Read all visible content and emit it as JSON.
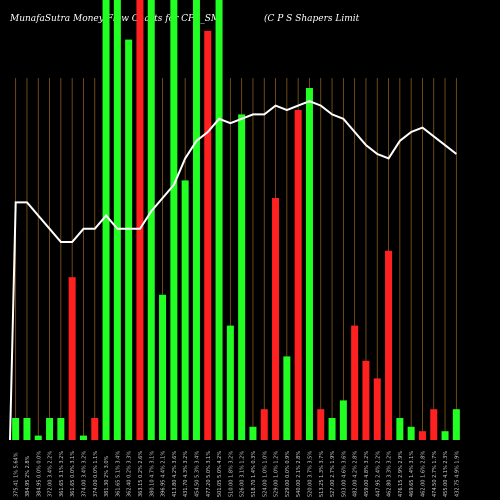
{
  "header": {
    "left": "MunafaSutra  Money Flow  Charts for CPS_SM",
    "right": "(C P S Shapers Limit"
  },
  "colors": {
    "background": "#000000",
    "up": "#22ff22",
    "down": "#ff2020",
    "grid": "#8a5a1a",
    "line": "#ffffff"
  },
  "chart_data": {
    "type": "bar",
    "ylim": [
      0,
      100
    ],
    "price_ylim": [
      0,
      100
    ],
    "categories": [
      "375.41 1% 5.64%",
      "384.95 2% 2.8%",
      "384.95 0.0% 0.0%",
      "372.00 3.4% 2.2%",
      "361.65 3.1% 3.2%",
      "361.65 0.0% 3.1%",
      "374.00 3.4% 3.2%",
      "374.00 0.0% 1.1%",
      "381.30 2% 3.0%",
      "361.65 5.1% 3.4%",
      "362.40 0.2% 3.3%",
      "363.15 0.2% 2.6%",
      "380.10 4.7% 3.1%",
      "396.95 4.4% 2.1%",
      "413.80 4.2% 3.6%",
      "431.70 4.3% 3.2%",
      "454.50 5.3% 3.4%",
      "477.20 5.0% 3.1%",
      "501.05 5.0% 4.2%",
      "510.00 1.8% 3.2%",
      "526.00 3.1% 1.2%",
      "518.70 1.4% 0.3%",
      "524.00 1.0% 1.0%",
      "529.00 1.0% 1.2%",
      "529.00 0.0% 0.9%",
      "540.00 2.1% 2.8%",
      "520.00 3.7% 3.5%",
      "513.25 1.3% 3.7%",
      "527.00 2.7% 1.9%",
      "503.00 4.6% 3.6%",
      "482.00 4.2% 2.8%",
      "459.00 4.8% 3.2%",
      "447.95 2.4% 2.2%",
      "462.80 3.3% 3.2%",
      "476.15 2.9% 2.9%",
      "469.65 1.4% 3.1%",
      "462.00 1.6% 2.8%",
      "474.50 2.7% 1.7%",
      "455.00 4.1% 2.3%",
      "432.75 4.9% 1.9%"
    ],
    "series": [
      {
        "direction": [
          "up",
          "up",
          "up",
          "up",
          "up",
          "down",
          "up",
          "down",
          "up",
          "up",
          "up",
          "down",
          "up",
          "up",
          "up",
          "up",
          "up",
          "down",
          "up",
          "up",
          "up",
          "up",
          "down",
          "down",
          "up",
          "down",
          "up",
          "down",
          "up",
          "up",
          "down",
          "down",
          "down",
          "down",
          "up",
          "up",
          "down",
          "down",
          "up",
          "up"
        ],
        "values": [
          5,
          5,
          1,
          5,
          5,
          37,
          1,
          5,
          100,
          100,
          91,
          100,
          100,
          33,
          100,
          59,
          100,
          93,
          100,
          26,
          74,
          3,
          7,
          55,
          19,
          75,
          80,
          7,
          5,
          9,
          26,
          18,
          14,
          43,
          5,
          3,
          2,
          7,
          2,
          7
        ],
        "color_key": "bar"
      },
      {
        "values": [
          54,
          54,
          51,
          48,
          45,
          45,
          48,
          48,
          51,
          48,
          48,
          48,
          52,
          55,
          58,
          64,
          68,
          70,
          73,
          72,
          73,
          74,
          74,
          76,
          75,
          76,
          77,
          76,
          74,
          73,
          70,
          67,
          65,
          64,
          68,
          70,
          71,
          69,
          67,
          65
        ],
        "color_key": "line"
      }
    ]
  }
}
